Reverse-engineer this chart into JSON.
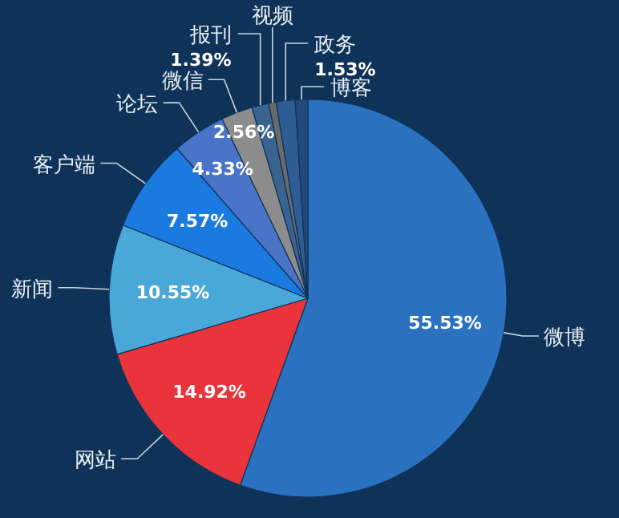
{
  "chart_data": {
    "type": "pie",
    "categories": [
      "微博",
      "网站",
      "新闻",
      "客户端",
      "论坛",
      "微信",
      "报刊",
      "视频",
      "政务",
      "博客"
    ],
    "values": [
      55.53,
      14.92,
      10.55,
      7.57,
      4.33,
      2.56,
      1.39,
      0.6,
      1.53,
      1.02
    ],
    "value_labels": [
      "55.53%",
      "14.92%",
      "10.55%",
      "7.57%",
      "4.33%",
      "2.56%",
      "1.39%",
      null,
      "1.53%",
      null
    ],
    "colors": [
      "#2a72c0",
      "#e8343a",
      "#4aa8d8",
      "#1a7ae0",
      "#4a74c8",
      "#8c8c8c",
      "#3a6390",
      "#6a6a6a",
      "#2e5c94",
      "#234a7a"
    ]
  }
}
